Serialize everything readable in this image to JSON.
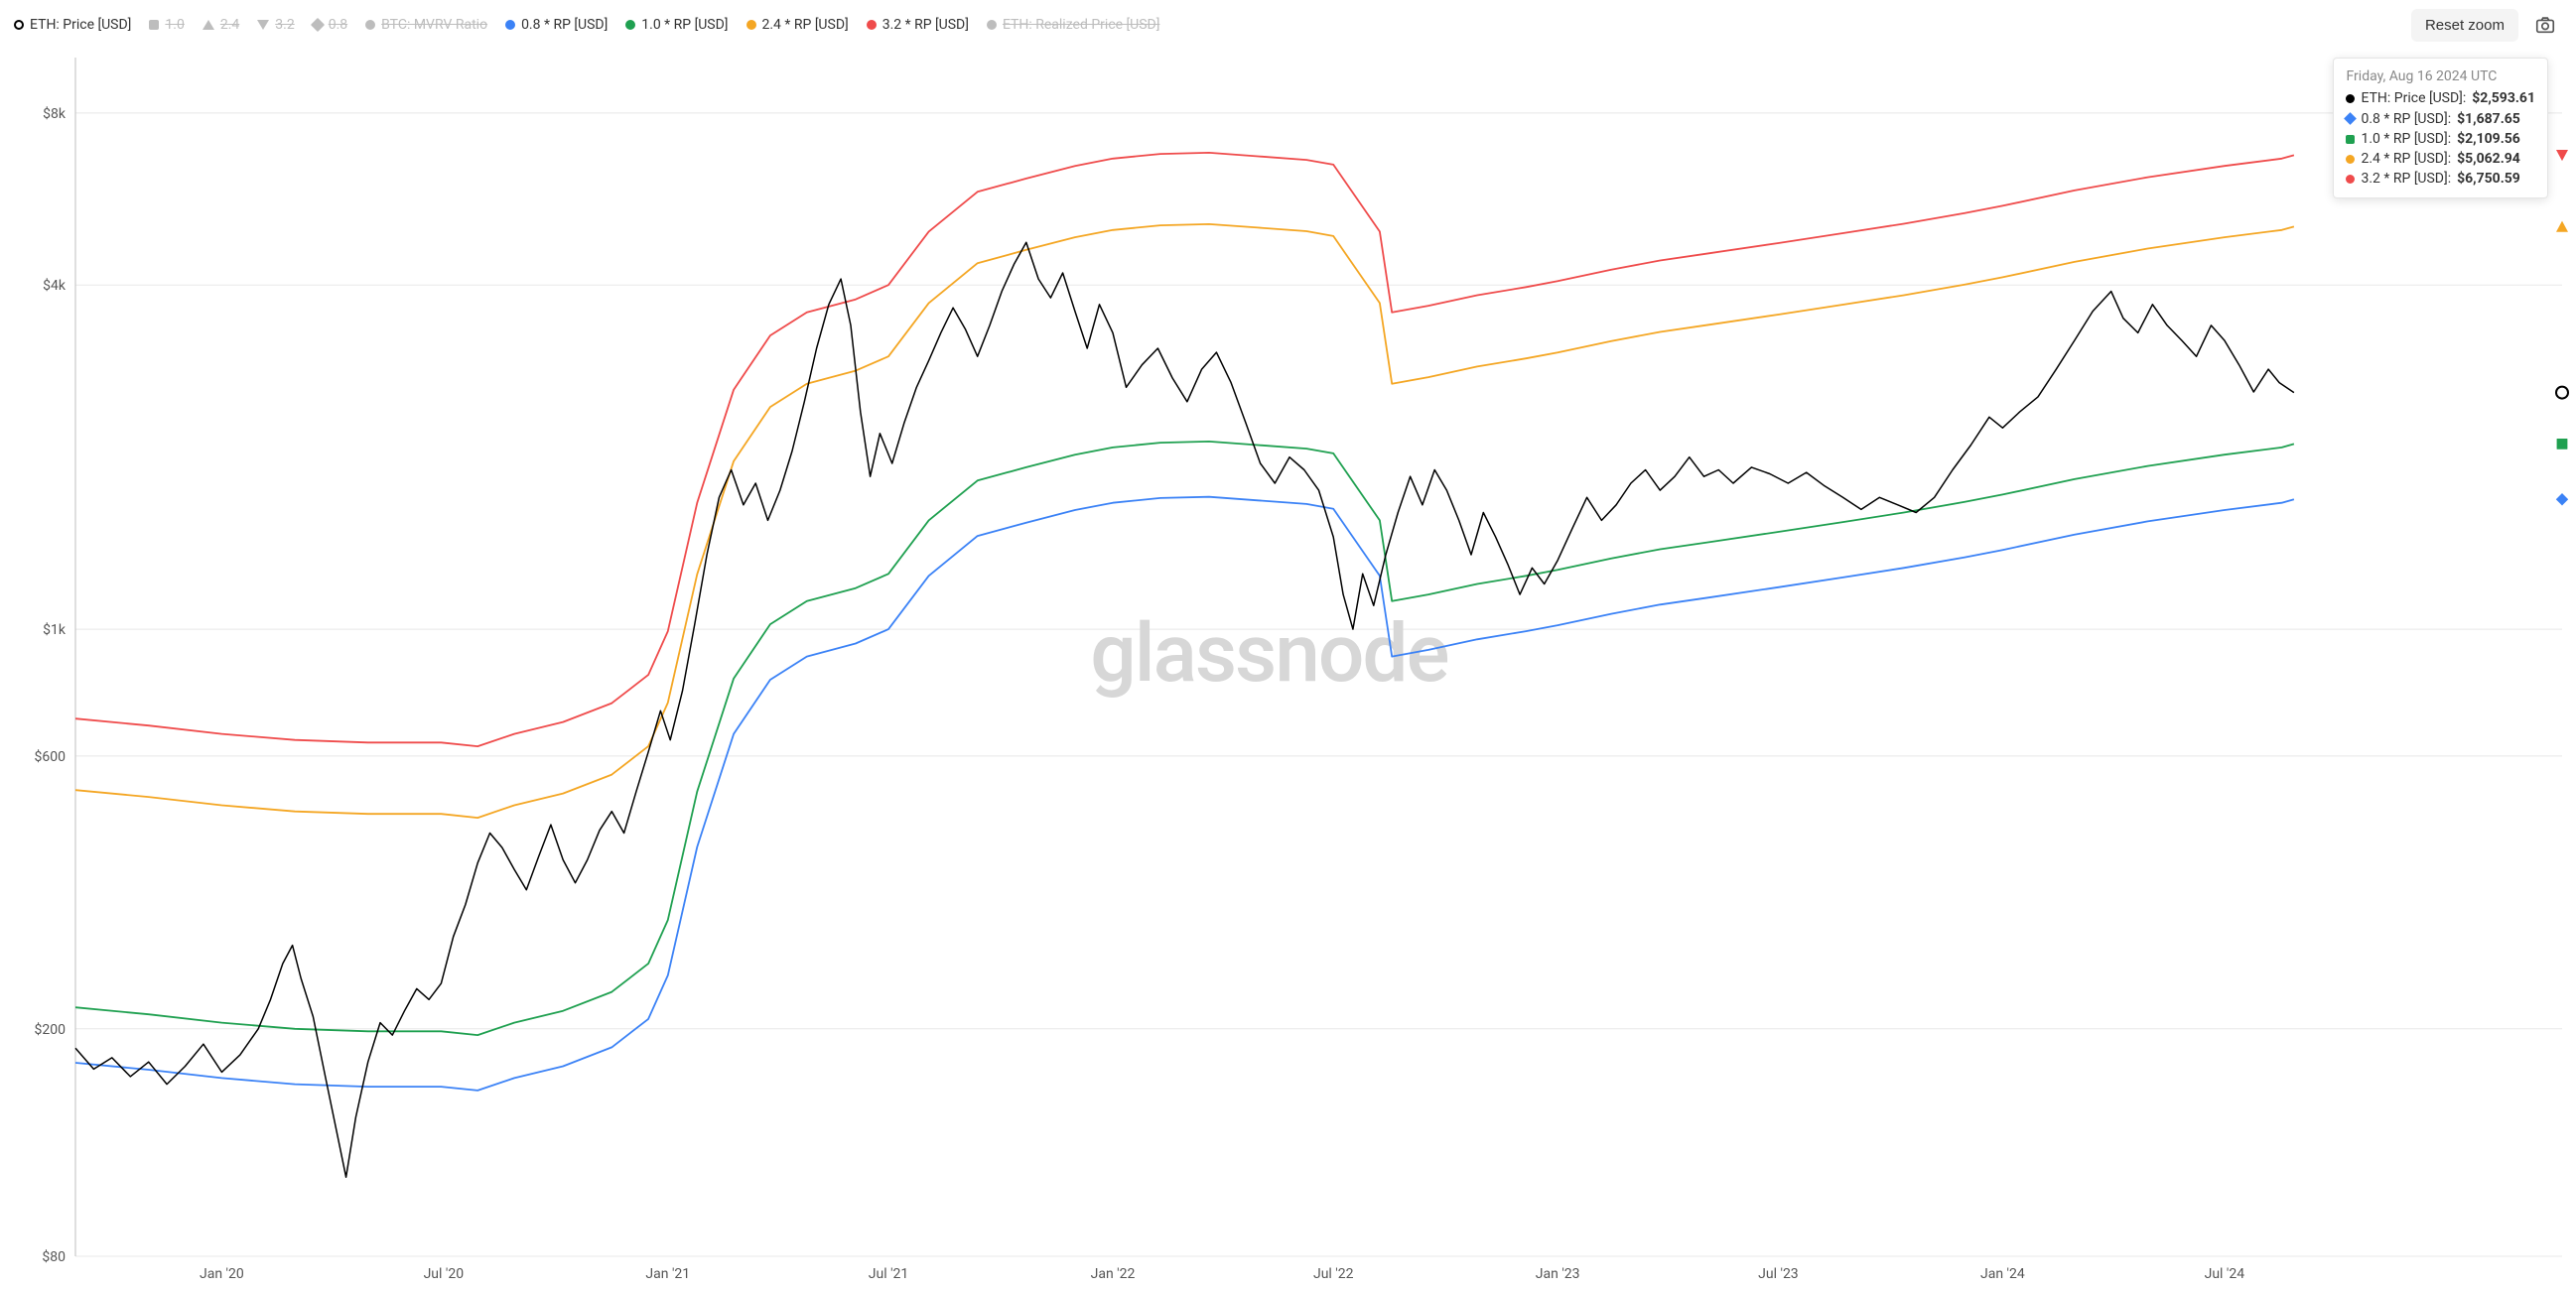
{
  "actions": {
    "reset_zoom_label": "Reset zoom"
  },
  "watermark": "glassnode",
  "chart": {
    "type": "line",
    "background_color": "#ffffff",
    "grid_color": "#e8e8e8",
    "axis_color": "#555555",
    "axis_line_color": "#bfbfbf",
    "axis_fontsize": 14,
    "watermark_color": "#d7d7d7",
    "watermark_fontsize": 82,
    "yaxis": {
      "scale": "log",
      "min": 80,
      "max": 10000,
      "ticks": [
        {
          "v": 80,
          "label": "$80"
        },
        {
          "v": 200,
          "label": "$200"
        },
        {
          "v": 600,
          "label": "$600"
        },
        {
          "v": 1000,
          "label": "$1k"
        },
        {
          "v": 4000,
          "label": "$4k"
        },
        {
          "v": 8000,
          "label": "$8k"
        }
      ]
    },
    "xaxis": {
      "min": 0,
      "max": 2040,
      "ticks": [
        {
          "v": 120,
          "label": "Jan '20"
        },
        {
          "v": 302,
          "label": "Jul '20"
        },
        {
          "v": 486,
          "label": "Jan '21"
        },
        {
          "v": 667,
          "label": "Jul '21"
        },
        {
          "v": 851,
          "label": "Jan '22"
        },
        {
          "v": 1032,
          "label": "Jul '22"
        },
        {
          "v": 1216,
          "label": "Jan '23"
        },
        {
          "v": 1397,
          "label": "Jul '23"
        },
        {
          "v": 1581,
          "label": "Jan '24"
        },
        {
          "v": 1763,
          "label": "Jul '24"
        }
      ]
    },
    "legend": [
      {
        "key": "eth_price",
        "label": "ETH: Price [USD]",
        "color": "#000000",
        "marker": "outline-circle",
        "visible": true,
        "tooltip": true
      },
      {
        "key": "m10",
        "label": "1.0",
        "color": "#1fa050",
        "marker": "square",
        "visible": false,
        "tooltip": false
      },
      {
        "key": "m24",
        "label": "2.4",
        "color": "#f4a623",
        "marker": "triangle-up",
        "visible": false,
        "tooltip": false
      },
      {
        "key": "m32",
        "label": "3.2",
        "color": "#ef4b4b",
        "marker": "triangle-down",
        "visible": false,
        "tooltip": false
      },
      {
        "key": "m08",
        "label": "0.8",
        "color": "#3b82f6",
        "marker": "diamond",
        "visible": false,
        "tooltip": false
      },
      {
        "key": "btc_mvrv",
        "label": "BTC: MVRV Ratio",
        "color": "#f4a623",
        "marker": "circle",
        "visible": false,
        "tooltip": false
      },
      {
        "key": "rp_08",
        "label": "0.8 * RP [USD]",
        "color": "#3b82f6",
        "marker": "circle",
        "visible": true,
        "tooltip": true
      },
      {
        "key": "rp_10",
        "label": "1.0 * RP [USD]",
        "color": "#1fa050",
        "marker": "circle",
        "visible": true,
        "tooltip": true
      },
      {
        "key": "rp_24",
        "label": "2.4 * RP [USD]",
        "color": "#f4a623",
        "marker": "circle",
        "visible": true,
        "tooltip": true
      },
      {
        "key": "rp_32",
        "label": "3.2 * RP [USD]",
        "color": "#ef4b4b",
        "marker": "circle",
        "visible": true,
        "tooltip": true
      },
      {
        "key": "eth_realized",
        "label": "ETH: Realized Price [USD]",
        "color": "#3b82f6",
        "marker": "circle",
        "visible": false,
        "tooltip": false
      }
    ],
    "line_width_main": 1.5,
    "line_width_bands": 1.8,
    "series": {
      "rp_10": {
        "color": "#1fa050",
        "end_marker": "square",
        "points": [
          [
            0,
            218
          ],
          [
            60,
            212
          ],
          [
            120,
            205
          ],
          [
            180,
            200
          ],
          [
            240,
            198
          ],
          [
            300,
            198
          ],
          [
            330,
            195
          ],
          [
            360,
            205
          ],
          [
            400,
            215
          ],
          [
            440,
            232
          ],
          [
            470,
            260
          ],
          [
            486,
            310
          ],
          [
            510,
            520
          ],
          [
            540,
            820
          ],
          [
            570,
            1020
          ],
          [
            600,
            1120
          ],
          [
            640,
            1180
          ],
          [
            667,
            1250
          ],
          [
            700,
            1550
          ],
          [
            740,
            1820
          ],
          [
            780,
            1920
          ],
          [
            820,
            2020
          ],
          [
            851,
            2080
          ],
          [
            890,
            2120
          ],
          [
            930,
            2130
          ],
          [
            970,
            2100
          ],
          [
            1010,
            2070
          ],
          [
            1032,
            2030
          ],
          [
            1070,
            1550
          ],
          [
            1080,
            1120
          ],
          [
            1110,
            1150
          ],
          [
            1150,
            1200
          ],
          [
            1190,
            1240
          ],
          [
            1216,
            1270
          ],
          [
            1260,
            1330
          ],
          [
            1300,
            1380
          ],
          [
            1340,
            1420
          ],
          [
            1397,
            1480
          ],
          [
            1450,
            1540
          ],
          [
            1500,
            1600
          ],
          [
            1550,
            1670
          ],
          [
            1581,
            1720
          ],
          [
            1640,
            1830
          ],
          [
            1700,
            1930
          ],
          [
            1763,
            2020
          ],
          [
            1810,
            2080
          ],
          [
            1820,
            2109
          ]
        ]
      },
      "rp_08": {
        "color": "#3b82f6",
        "end_marker": "diamond",
        "derived_from": "rp_10",
        "multiplier": 0.8
      },
      "rp_24": {
        "color": "#f4a623",
        "end_marker": "triangle-up",
        "derived_from": "rp_10",
        "multiplier": 2.4
      },
      "rp_32": {
        "color": "#ef4b4b",
        "end_marker": "triangle-down",
        "derived_from": "rp_10",
        "multiplier": 3.2
      },
      "eth_price": {
        "color": "#000000",
        "end_marker": "outline-circle",
        "points": [
          [
            0,
            185
          ],
          [
            15,
            170
          ],
          [
            30,
            178
          ],
          [
            45,
            165
          ],
          [
            60,
            175
          ],
          [
            75,
            160
          ],
          [
            90,
            172
          ],
          [
            105,
            188
          ],
          [
            120,
            168
          ],
          [
            135,
            180
          ],
          [
            150,
            200
          ],
          [
            160,
            225
          ],
          [
            170,
            260
          ],
          [
            178,
            280
          ],
          [
            185,
            245
          ],
          [
            195,
            210
          ],
          [
            205,
            165
          ],
          [
            215,
            130
          ],
          [
            222,
            110
          ],
          [
            230,
            140
          ],
          [
            240,
            175
          ],
          [
            250,
            205
          ],
          [
            260,
            195
          ],
          [
            270,
            215
          ],
          [
            280,
            235
          ],
          [
            290,
            225
          ],
          [
            300,
            240
          ],
          [
            310,
            290
          ],
          [
            320,
            330
          ],
          [
            330,
            390
          ],
          [
            340,
            440
          ],
          [
            350,
            415
          ],
          [
            360,
            380
          ],
          [
            370,
            350
          ],
          [
            380,
            400
          ],
          [
            390,
            455
          ],
          [
            400,
            395
          ],
          [
            410,
            360
          ],
          [
            420,
            395
          ],
          [
            430,
            445
          ],
          [
            440,
            480
          ],
          [
            450,
            440
          ],
          [
            460,
            520
          ],
          [
            470,
            610
          ],
          [
            480,
            720
          ],
          [
            488,
            640
          ],
          [
            498,
            780
          ],
          [
            508,
            1020
          ],
          [
            518,
            1350
          ],
          [
            528,
            1700
          ],
          [
            538,
            1900
          ],
          [
            548,
            1650
          ],
          [
            558,
            1800
          ],
          [
            568,
            1550
          ],
          [
            578,
            1750
          ],
          [
            588,
            2050
          ],
          [
            598,
            2500
          ],
          [
            608,
            3100
          ],
          [
            618,
            3700
          ],
          [
            628,
            4100
          ],
          [
            636,
            3400
          ],
          [
            644,
            2400
          ],
          [
            652,
            1850
          ],
          [
            660,
            2200
          ],
          [
            670,
            1950
          ],
          [
            680,
            2300
          ],
          [
            690,
            2650
          ],
          [
            700,
            2950
          ],
          [
            710,
            3300
          ],
          [
            720,
            3650
          ],
          [
            730,
            3350
          ],
          [
            740,
            3000
          ],
          [
            750,
            3400
          ],
          [
            760,
            3900
          ],
          [
            770,
            4350
          ],
          [
            780,
            4750
          ],
          [
            790,
            4100
          ],
          [
            800,
            3800
          ],
          [
            810,
            4200
          ],
          [
            820,
            3600
          ],
          [
            830,
            3100
          ],
          [
            840,
            3700
          ],
          [
            851,
            3300
          ],
          [
            862,
            2650
          ],
          [
            875,
            2900
          ],
          [
            888,
            3100
          ],
          [
            900,
            2750
          ],
          [
            912,
            2500
          ],
          [
            924,
            2850
          ],
          [
            936,
            3050
          ],
          [
            948,
            2700
          ],
          [
            960,
            2300
          ],
          [
            972,
            1950
          ],
          [
            984,
            1800
          ],
          [
            996,
            2000
          ],
          [
            1008,
            1900
          ],
          [
            1020,
            1750
          ],
          [
            1032,
            1450
          ],
          [
            1040,
            1150
          ],
          [
            1048,
            1000
          ],
          [
            1056,
            1250
          ],
          [
            1065,
            1100
          ],
          [
            1075,
            1350
          ],
          [
            1085,
            1600
          ],
          [
            1095,
            1850
          ],
          [
            1105,
            1650
          ],
          [
            1115,
            1900
          ],
          [
            1125,
            1750
          ],
          [
            1135,
            1550
          ],
          [
            1145,
            1350
          ],
          [
            1155,
            1600
          ],
          [
            1165,
            1450
          ],
          [
            1175,
            1300
          ],
          [
            1185,
            1150
          ],
          [
            1195,
            1280
          ],
          [
            1205,
            1200
          ],
          [
            1216,
            1320
          ],
          [
            1228,
            1500
          ],
          [
            1240,
            1700
          ],
          [
            1252,
            1550
          ],
          [
            1264,
            1650
          ],
          [
            1276,
            1800
          ],
          [
            1288,
            1900
          ],
          [
            1300,
            1750
          ],
          [
            1312,
            1850
          ],
          [
            1324,
            2000
          ],
          [
            1336,
            1850
          ],
          [
            1348,
            1900
          ],
          [
            1360,
            1800
          ],
          [
            1375,
            1920
          ],
          [
            1390,
            1870
          ],
          [
            1405,
            1800
          ],
          [
            1420,
            1880
          ],
          [
            1435,
            1780
          ],
          [
            1450,
            1700
          ],
          [
            1465,
            1620
          ],
          [
            1480,
            1700
          ],
          [
            1495,
            1650
          ],
          [
            1510,
            1600
          ],
          [
            1525,
            1700
          ],
          [
            1540,
            1900
          ],
          [
            1555,
            2100
          ],
          [
            1570,
            2350
          ],
          [
            1581,
            2250
          ],
          [
            1595,
            2400
          ],
          [
            1610,
            2550
          ],
          [
            1625,
            2850
          ],
          [
            1640,
            3200
          ],
          [
            1655,
            3600
          ],
          [
            1670,
            3900
          ],
          [
            1680,
            3500
          ],
          [
            1692,
            3300
          ],
          [
            1704,
            3700
          ],
          [
            1716,
            3400
          ],
          [
            1728,
            3200
          ],
          [
            1740,
            3000
          ],
          [
            1752,
            3400
          ],
          [
            1763,
            3200
          ],
          [
            1775,
            2900
          ],
          [
            1787,
            2600
          ],
          [
            1799,
            2850
          ],
          [
            1808,
            2700
          ],
          [
            1820,
            2594
          ]
        ]
      }
    }
  },
  "tooltip": {
    "date": "Friday, Aug 16 2024 UTC",
    "rows": [
      {
        "key": "eth_price",
        "color": "#000000",
        "shape": "circle",
        "label": "ETH: Price [USD]",
        "value": "$2,593.61"
      },
      {
        "key": "rp_08",
        "color": "#3b82f6",
        "shape": "diamond",
        "label": "0.8 * RP [USD]",
        "value": "$1,687.65"
      },
      {
        "key": "rp_10",
        "color": "#1fa050",
        "shape": "square",
        "label": "1.0 * RP [USD]",
        "value": "$2,109.56"
      },
      {
        "key": "rp_24",
        "color": "#f4a623",
        "shape": "circle",
        "label": "2.4 * RP [USD]",
        "value": "$5,062.94"
      },
      {
        "key": "rp_32",
        "color": "#ef4b4b",
        "shape": "circle",
        "label": "3.2 * RP [USD]",
        "value": "$6,750.59"
      }
    ]
  }
}
